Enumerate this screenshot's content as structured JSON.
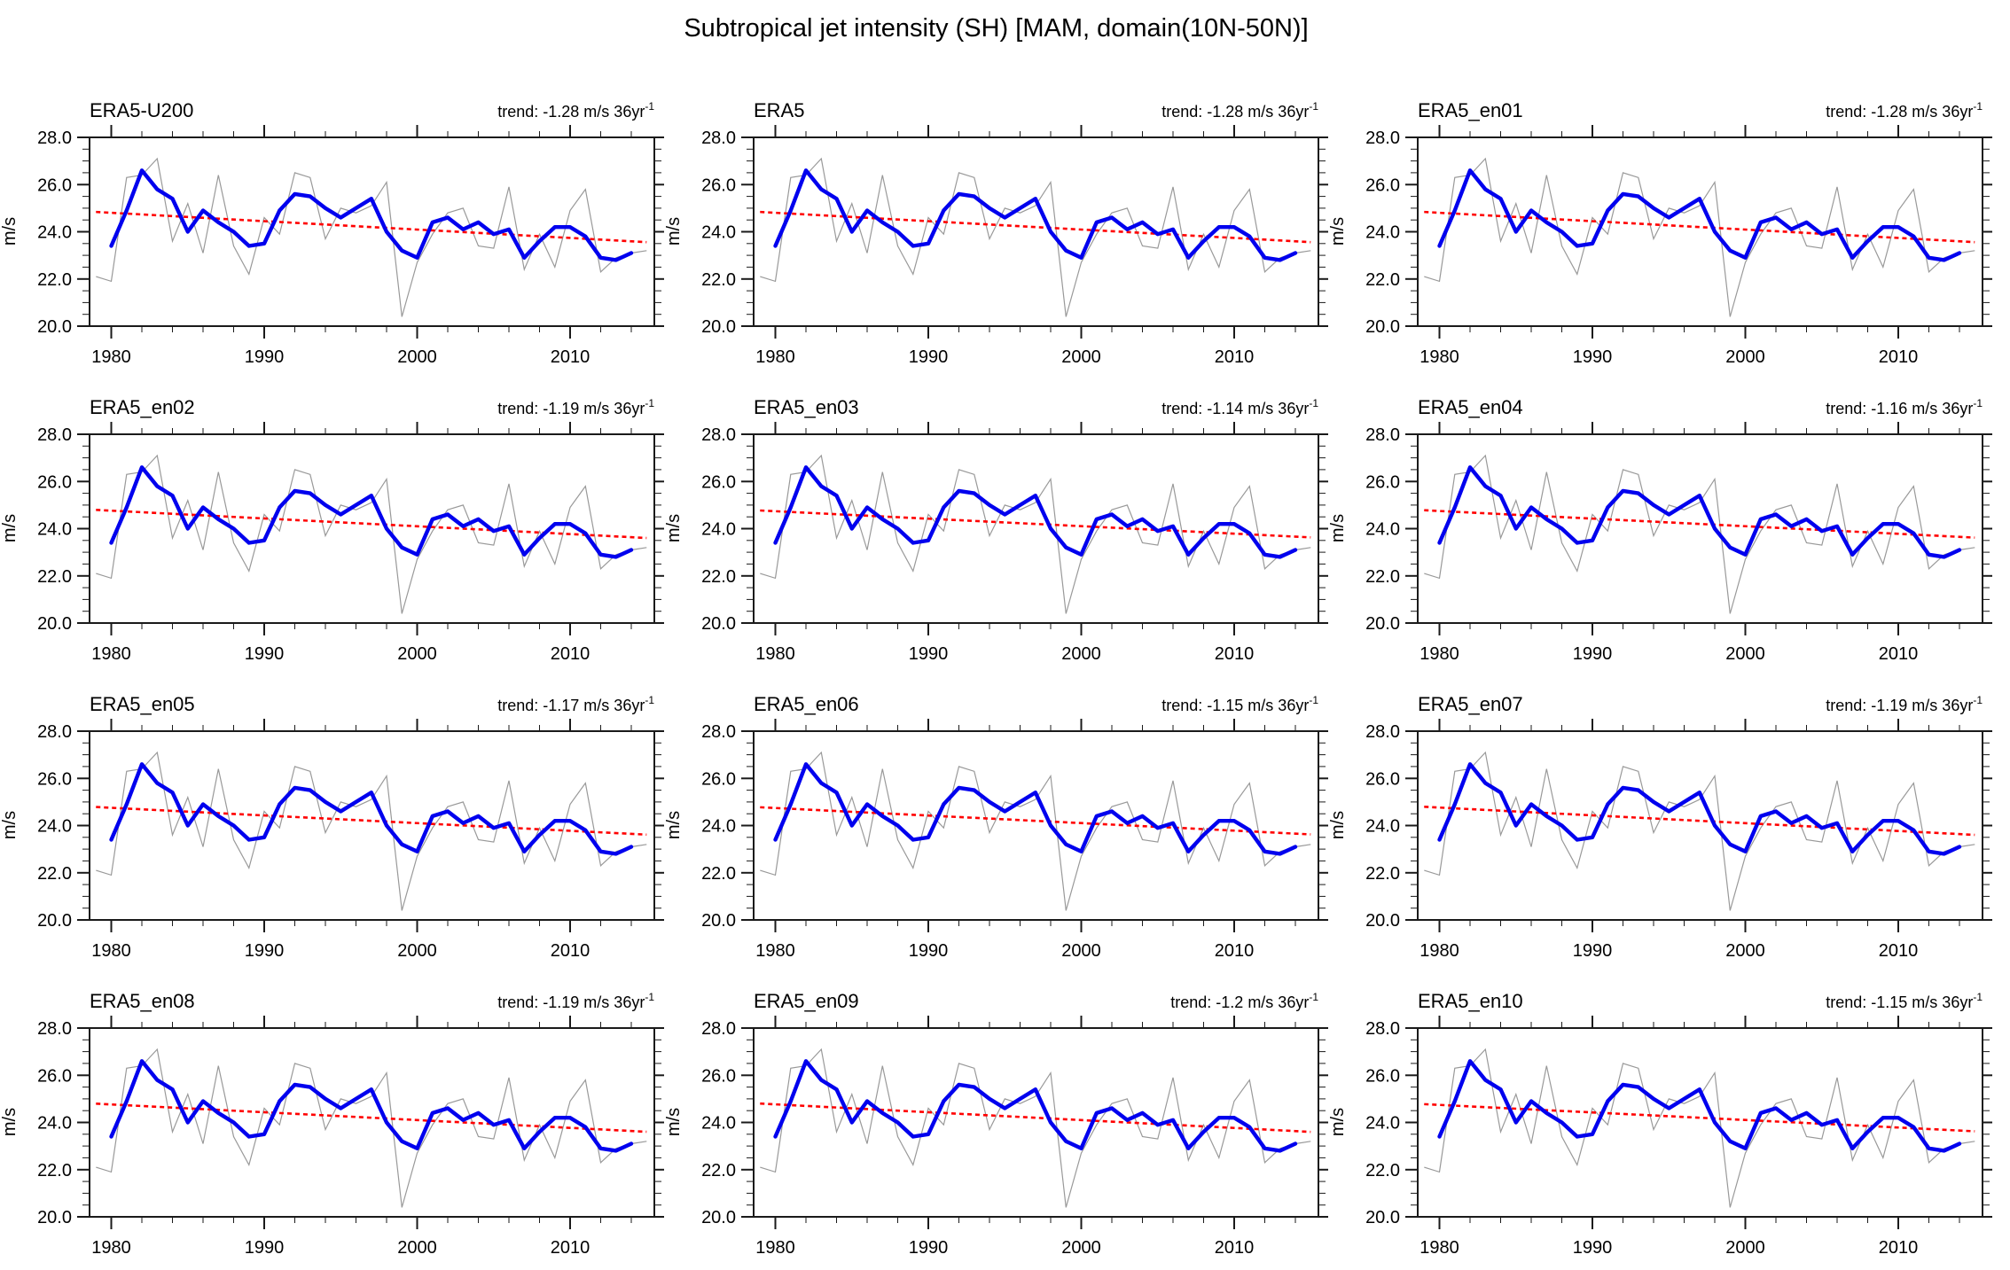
{
  "main_title": "Subtropical jet intensity (SH) [MAM, domain(10N-50N)]",
  "trend_prefix": "trend: ",
  "trend_suffix": " m/s 36yr",
  "trend_superscript": "-1",
  "axes": {
    "ylabel": "m/s",
    "ylim": [
      20.0,
      28.0
    ],
    "yticks": [
      20,
      22,
      24,
      26,
      28
    ],
    "ytick_labels": [
      "20.0",
      "22.0",
      "24.0",
      "26.0",
      "28.0"
    ],
    "y_minor_step": 0.5,
    "xlim": [
      1978.6,
      2015.5
    ],
    "xticks": [
      1980,
      1990,
      2000,
      2010
    ],
    "xtick_labels": [
      "1980",
      "1990",
      "2000",
      "2010"
    ],
    "x_minor_step": 2
  },
  "colors": {
    "annual_line": "#999999",
    "smoothed_line": "#0000ee",
    "trend_line": "#ff0000",
    "axis": "#1a1a1a",
    "text": "#000000"
  },
  "chart_data": {
    "type": "line",
    "title": "Subtropical jet intensity (SH) [MAM, domain(10N-50N)]",
    "ylabel": "m/s",
    "ylim": [
      20.0,
      28.0
    ],
    "xlim": [
      1978.6,
      2015.5
    ],
    "grid": false,
    "legend": "none",
    "layout": "12 panels in 4 rows x 3 columns; all panels share near-identical series, differing only in fitted trend",
    "series": [
      {
        "name": "annual",
        "style": "thin gray solid",
        "years": [
          1979,
          1980,
          1981,
          1982,
          1983,
          1984,
          1985,
          1986,
          1987,
          1988,
          1989,
          1990,
          1991,
          1992,
          1993,
          1994,
          1995,
          1996,
          1997,
          1998,
          1999,
          2000,
          2001,
          2002,
          2003,
          2004,
          2005,
          2006,
          2007,
          2008,
          2009,
          2010,
          2011,
          2012,
          2013,
          2014,
          2015
        ],
        "values": [
          22.1,
          21.9,
          26.3,
          26.4,
          27.1,
          23.6,
          25.2,
          23.1,
          26.4,
          23.4,
          22.2,
          24.6,
          23.9,
          26.5,
          26.3,
          23.7,
          25.0,
          24.8,
          25.1,
          26.1,
          20.4,
          22.7,
          23.9,
          24.8,
          25.0,
          23.4,
          23.3,
          25.9,
          22.4,
          23.9,
          22.5,
          24.9,
          25.8,
          22.3,
          22.9,
          23.1,
          23.2
        ]
      },
      {
        "name": "smoothed",
        "style": "thick blue solid",
        "years": [
          1980,
          1981,
          1982,
          1983,
          1984,
          1985,
          1986,
          1987,
          1988,
          1989,
          1990,
          1991,
          1992,
          1993,
          1994,
          1995,
          1996,
          1997,
          1998,
          1999,
          2000,
          2001,
          2002,
          2003,
          2004,
          2005,
          2006,
          2007,
          2008,
          2009,
          2010,
          2011,
          2012,
          2013,
          2014
        ],
        "values": [
          23.4,
          24.9,
          26.6,
          25.8,
          25.4,
          24.0,
          24.9,
          24.4,
          24.0,
          23.4,
          23.5,
          24.9,
          25.6,
          25.5,
          25.0,
          24.6,
          25.0,
          25.4,
          24.0,
          23.2,
          22.9,
          24.4,
          24.6,
          24.1,
          24.4,
          23.9,
          24.1,
          22.9,
          23.6,
          24.2,
          24.2,
          23.8,
          22.9,
          22.8,
          23.1
        ]
      }
    ],
    "trend_reference": {
      "style": "red dashed",
      "start_year": 1979,
      "end_year": 2015,
      "mid_value": 24.2,
      "note": "per-panel line value(yr) = mid_value + trend_value*(yr-1997)/36"
    },
    "panels": [
      {
        "title": "ERA5-U200",
        "trend_value": -1.28,
        "trend_text": "-1.28"
      },
      {
        "title": "ERA5",
        "trend_value": -1.28,
        "trend_text": "-1.28"
      },
      {
        "title": "ERA5_en01",
        "trend_value": -1.28,
        "trend_text": "-1.28"
      },
      {
        "title": "ERA5_en02",
        "trend_value": -1.19,
        "trend_text": "-1.19"
      },
      {
        "title": "ERA5_en03",
        "trend_value": -1.14,
        "trend_text": "-1.14"
      },
      {
        "title": "ERA5_en04",
        "trend_value": -1.16,
        "trend_text": "-1.16"
      },
      {
        "title": "ERA5_en05",
        "trend_value": -1.17,
        "trend_text": "-1.17"
      },
      {
        "title": "ERA5_en06",
        "trend_value": -1.15,
        "trend_text": "-1.15"
      },
      {
        "title": "ERA5_en07",
        "trend_value": -1.19,
        "trend_text": "-1.19"
      },
      {
        "title": "ERA5_en08",
        "trend_value": -1.19,
        "trend_text": "-1.19"
      },
      {
        "title": "ERA5_en09",
        "trend_value": -1.2,
        "trend_text": "-1.2"
      },
      {
        "title": "ERA5_en10",
        "trend_value": -1.15,
        "trend_text": "-1.15"
      }
    ]
  }
}
